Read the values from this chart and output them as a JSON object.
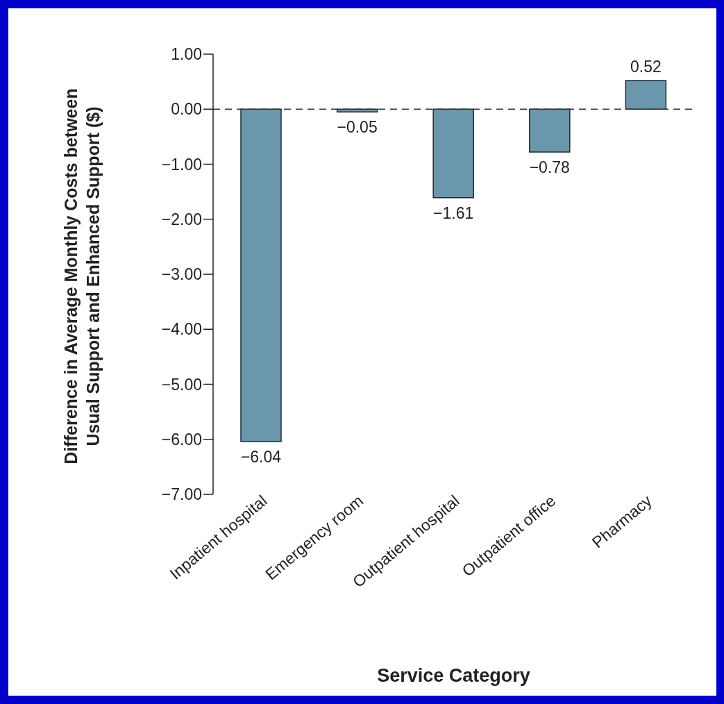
{
  "chart_data": {
    "type": "bar",
    "xlabel": "Service Category",
    "ylabel": "Difference in Average Monthly Costs between\nUsual Support and Enhanced Support ($)",
    "categories": [
      "Inpatient hospital",
      "Emergency room",
      "Outpatient hospital",
      "Outpatient office",
      "Pharmacy"
    ],
    "values": [
      -6.04,
      -0.05,
      -1.61,
      -0.78,
      0.52
    ],
    "value_labels": [
      "−6.04",
      "−0.05",
      "−1.61",
      "−0.78",
      "0.52"
    ],
    "color": "#6b97ad",
    "ylim": [
      -7,
      1
    ],
    "yticks": [
      {
        "value": 1,
        "label": "1.00"
      },
      {
        "value": 0,
        "label": "0.00"
      },
      {
        "value": -1,
        "label": "−1.00"
      },
      {
        "value": -2,
        "label": "−2.00"
      },
      {
        "value": -3,
        "label": "−3.00"
      },
      {
        "value": -4,
        "label": "−4.00"
      },
      {
        "value": -5,
        "label": "−5.00"
      },
      {
        "value": -6,
        "label": "−6.00"
      },
      {
        "value": -7,
        "label": "−7.00"
      }
    ],
    "ref_lines": [
      {
        "axis": "y",
        "value": 0,
        "line_style": "dashed",
        "color": "#333333"
      }
    ],
    "grid": false,
    "legend": false
  }
}
